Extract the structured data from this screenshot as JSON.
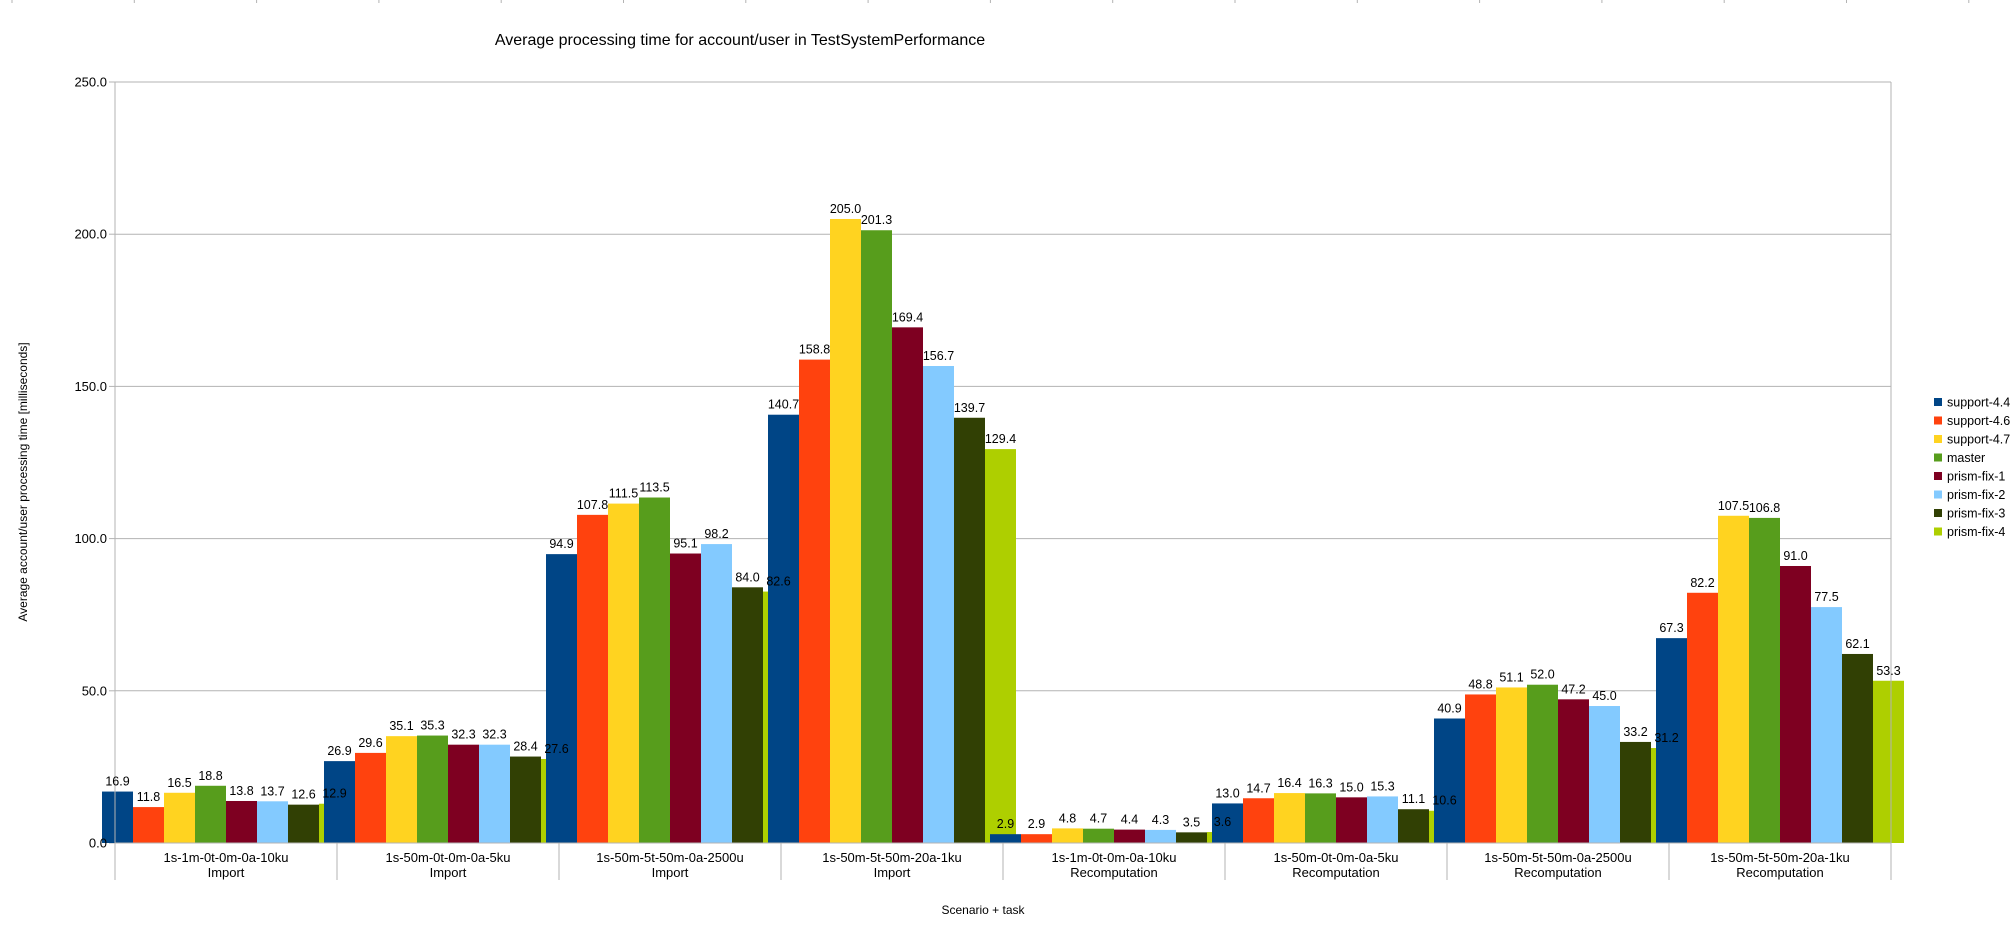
{
  "chart_data": {
    "type": "bar",
    "title": "Average processing time for account/user in TestSystemPerformance",
    "xlabel": "Scenario + task",
    "ylabel": "Average account/user processing time [milliseconds]",
    "ylim": [
      0,
      250
    ],
    "yticks": [
      "0.0",
      "50.0",
      "100.0",
      "150.0",
      "200.0",
      "250.0"
    ],
    "grid": true,
    "legend_position": "right",
    "categories": [
      {
        "scenario": "1s-1m-0t-0m-0a-10ku",
        "task": "Import"
      },
      {
        "scenario": "1s-50m-0t-0m-0a-5ku",
        "task": "Import"
      },
      {
        "scenario": "1s-50m-5t-50m-0a-2500u",
        "task": "Import"
      },
      {
        "scenario": "1s-50m-5t-50m-20a-1ku",
        "task": "Import"
      },
      {
        "scenario": "1s-1m-0t-0m-0a-10ku",
        "task": "Recomputation"
      },
      {
        "scenario": "1s-50m-0t-0m-0a-5ku",
        "task": "Recomputation"
      },
      {
        "scenario": "1s-50m-5t-50m-0a-2500u",
        "task": "Recomputation"
      },
      {
        "scenario": "1s-50m-5t-50m-20a-1ku",
        "task": "Recomputation"
      }
    ],
    "series": [
      {
        "name": "support-4.4",
        "color": "#004586",
        "values": [
          16.9,
          26.9,
          94.9,
          140.7,
          2.9,
          13.0,
          40.9,
          67.3
        ]
      },
      {
        "name": "support-4.6",
        "color": "#ff420e",
        "values": [
          11.8,
          29.6,
          107.8,
          158.8,
          2.9,
          14.7,
          48.8,
          82.2
        ]
      },
      {
        "name": "support-4.7",
        "color": "#ffd320",
        "values": [
          16.5,
          35.1,
          111.5,
          205.0,
          4.8,
          16.4,
          51.1,
          107.5
        ]
      },
      {
        "name": "master",
        "color": "#579d1c",
        "values": [
          18.8,
          35.3,
          113.5,
          201.3,
          4.7,
          16.3,
          52.0,
          106.8
        ]
      },
      {
        "name": "prism-fix-1",
        "color": "#7e0021",
        "values": [
          13.8,
          32.3,
          95.1,
          169.4,
          4.4,
          15.0,
          47.2,
          91.0
        ]
      },
      {
        "name": "prism-fix-2",
        "color": "#83caff",
        "values": [
          13.7,
          32.3,
          98.2,
          156.7,
          4.3,
          15.3,
          45.0,
          77.5
        ]
      },
      {
        "name": "prism-fix-3",
        "color": "#314004",
        "values": [
          12.6,
          28.4,
          84.0,
          139.7,
          3.5,
          11.1,
          33.2,
          62.1
        ]
      },
      {
        "name": "prism-fix-4",
        "color": "#aecf00",
        "values": [
          12.9,
          27.6,
          82.6,
          129.4,
          3.6,
          10.6,
          31.2,
          53.3
        ]
      }
    ]
  }
}
